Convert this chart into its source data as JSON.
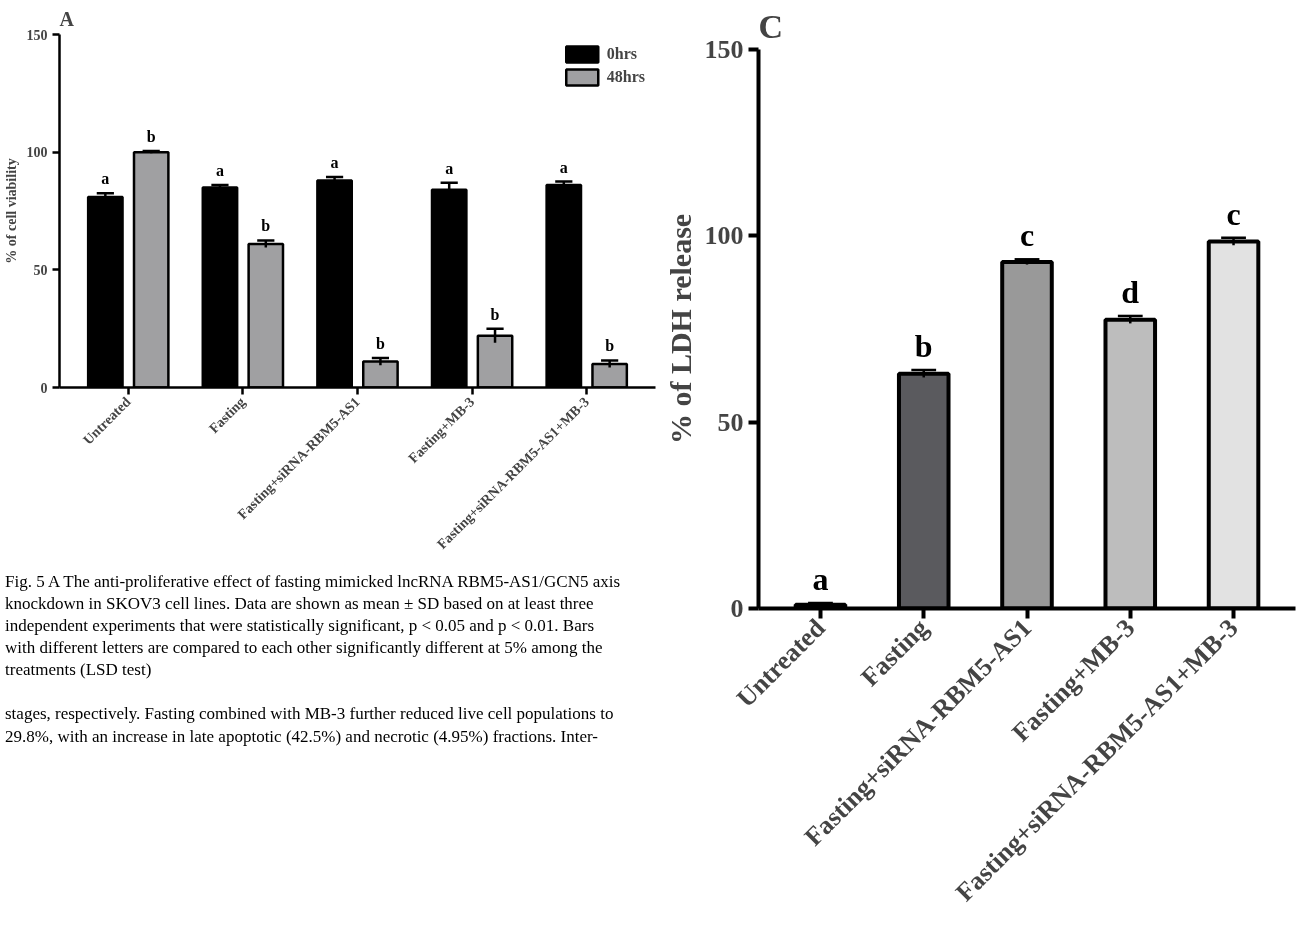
{
  "chart_data": [
    {
      "type": "bar",
      "title": "A",
      "ylabel": "% of cell viability",
      "categories": [
        "Untreated",
        "Fasting",
        "Fasting+siRNA-RBM5-AS1",
        "Fasting+MB-3",
        "Fasting+siRNA-RBM5-AS1+MB-3"
      ],
      "series": [
        {
          "name": "0hrs",
          "color": "#000000",
          "values": [
            81,
            85,
            88,
            84,
            86
          ],
          "errors": [
            1.5,
            1,
            1.5,
            3,
            1.5
          ],
          "value_labels": [
            "a",
            "a",
            "a",
            "a",
            "a"
          ]
        },
        {
          "name": "48hrs",
          "color": "#a0a0a2",
          "values": [
            100,
            61,
            11,
            22,
            10
          ],
          "errors": [
            0.5,
            1.5,
            1.5,
            3,
            1.5
          ],
          "value_labels": [
            "b",
            "b",
            "b",
            "b",
            "b"
          ]
        }
      ],
      "ylim": [
        0,
        150
      ],
      "yticks": [
        0,
        50,
        100,
        150
      ],
      "legend": "top right",
      "annotations": [
        "Fig. 5 A The anti-proliferative effect of fasting mimicked lncRNA RBM5-AS1/GCN5 axis knockdown in SKOV3 cell lines. Data are shown as mean ± SD based on at least three independent experiments that were statistically significant, p < 0.05 and p < 0.01. Bars with different letters are compared to each other significantly different at 5% among the treatments (LSD test)",
        "stages, respectively. Fasting combined with MB-3 further reduced live cell populations to 29.8%, with an increase in late apoptotic (42.5%) and necrotic (4.95%) fractions. Inter-"
      ]
    },
    {
      "type": "bar",
      "title": "C",
      "ylabel": "% of LDH release",
      "categories": [
        "Untreated",
        "Fasting",
        "Fasting+siRNA-RBM5-AS1",
        "Fasting+MB-3",
        "Fasting+siRNA-RBM5-AS1+MB-3"
      ],
      "values": [
        1,
        63,
        93,
        77.5,
        98.5
      ],
      "errors": [
        0.5,
        1,
        0.7,
        1,
        1
      ],
      "colors": [
        "#ffffff",
        "#5a5a5e",
        "#999999",
        "#bdbdbd",
        "#e2e2e2"
      ],
      "value_labels": [
        "a",
        "b",
        "c",
        "d",
        "c"
      ],
      "ylim": [
        0,
        150
      ],
      "yticks": [
        0,
        50,
        100,
        150
      ]
    }
  ]
}
